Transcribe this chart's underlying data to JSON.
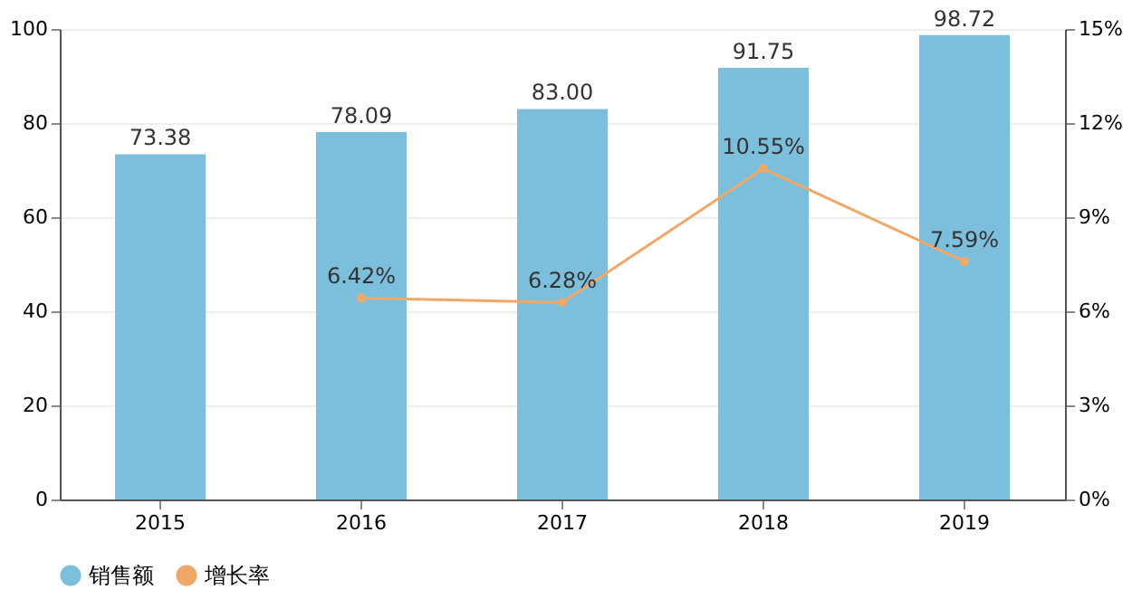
{
  "chart_data": {
    "type": "bar",
    "categories": [
      "2015",
      "2016",
      "2017",
      "2018",
      "2019"
    ],
    "series": [
      {
        "name": "销售额",
        "color": "#7bbfdc",
        "values": [
          73.38,
          78.09,
          83.0,
          91.75,
          98.72
        ],
        "value_labels": [
          "73.38",
          "78.09",
          "83.00",
          "91.75",
          "98.72"
        ]
      },
      {
        "name": "增长率",
        "type": "line",
        "axis": "y2",
        "color": "#f0a868",
        "marker": "circle",
        "values": [
          null,
          6.42,
          6.28,
          10.55,
          7.59
        ],
        "value_labels": [
          null,
          "6.42%",
          "6.28%",
          "10.55%",
          "7.59%"
        ]
      }
    ],
    "ylim": [
      0,
      100
    ],
    "yticks": [
      0,
      20,
      40,
      60,
      80,
      100
    ],
    "y2lim": [
      0,
      15
    ],
    "y2ticks": [
      {
        "value": 0,
        "label": "0%"
      },
      {
        "value": 3,
        "label": "3%"
      },
      {
        "value": 6,
        "label": "6%"
      },
      {
        "value": 9,
        "label": "9%"
      },
      {
        "value": 12,
        "label": "12%"
      },
      {
        "value": 15,
        "label": "15%"
      }
    ],
    "grid": "y",
    "legend": "bottom"
  }
}
